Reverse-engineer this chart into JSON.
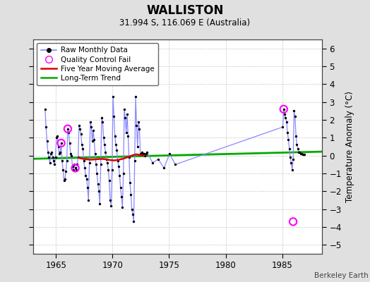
{
  "title": "WALLISTON",
  "subtitle": "31.994 S, 116.069 E (Australia)",
  "ylabel": "Temperature Anomaly (°C)",
  "credit": "Berkeley Earth",
  "xlim": [
    1963.0,
    1988.5
  ],
  "ylim": [
    -5.5,
    6.5
  ],
  "yticks": [
    -5,
    -4,
    -3,
    -2,
    -1,
    0,
    1,
    2,
    3,
    4,
    5,
    6
  ],
  "xticks": [
    1965,
    1970,
    1975,
    1980,
    1985
  ],
  "bg_color": "#e0e0e0",
  "plot_bg": "#ffffff",
  "raw_line_color": "#8888ff",
  "raw_dot_color": "#000000",
  "ma_color": "#dd0000",
  "trend_color": "#00aa00",
  "qc_color": "#ff00ff",
  "raw_data": [
    [
      1964.042,
      2.6
    ],
    [
      1964.125,
      1.6
    ],
    [
      1964.208,
      0.8
    ],
    [
      1964.292,
      0.2
    ],
    [
      1964.375,
      -0.1
    ],
    [
      1964.458,
      -0.4
    ],
    [
      1964.542,
      0.1
    ],
    [
      1964.625,
      0.2
    ],
    [
      1964.708,
      -0.1
    ],
    [
      1964.792,
      -0.3
    ],
    [
      1964.875,
      -0.5
    ],
    [
      1964.958,
      -0.1
    ],
    [
      1965.042,
      1.0
    ],
    [
      1965.125,
      1.1
    ],
    [
      1965.208,
      0.5
    ],
    [
      1965.292,
      0.1
    ],
    [
      1965.375,
      0.2
    ],
    [
      1965.458,
      0.7
    ],
    [
      1965.542,
      -0.3
    ],
    [
      1965.625,
      -0.8
    ],
    [
      1965.708,
      -1.4
    ],
    [
      1965.792,
      -1.3
    ],
    [
      1965.875,
      -0.9
    ],
    [
      1965.958,
      -0.3
    ],
    [
      1966.042,
      1.5
    ],
    [
      1966.125,
      1.3
    ],
    [
      1966.208,
      0.7
    ],
    [
      1966.292,
      0.1
    ],
    [
      1966.375,
      0.0
    ],
    [
      1966.458,
      -0.6
    ],
    [
      1966.542,
      -0.8
    ],
    [
      1966.625,
      -0.5
    ],
    [
      1966.708,
      -0.7
    ],
    [
      1966.792,
      -0.8
    ],
    [
      1966.875,
      -0.5
    ],
    [
      1966.958,
      -0.1
    ],
    [
      1967.042,
      1.7
    ],
    [
      1967.125,
      1.5
    ],
    [
      1967.208,
      1.2
    ],
    [
      1967.292,
      0.6
    ],
    [
      1967.375,
      0.4
    ],
    [
      1967.458,
      -0.3
    ],
    [
      1967.542,
      -0.7
    ],
    [
      1967.625,
      -1.1
    ],
    [
      1967.708,
      -1.3
    ],
    [
      1967.792,
      -1.8
    ],
    [
      1967.875,
      -2.5
    ],
    [
      1967.958,
      -0.4
    ],
    [
      1968.042,
      1.9
    ],
    [
      1968.125,
      1.6
    ],
    [
      1968.208,
      0.8
    ],
    [
      1968.292,
      1.4
    ],
    [
      1968.375,
      0.9
    ],
    [
      1968.458,
      0.1
    ],
    [
      1968.542,
      -0.5
    ],
    [
      1968.625,
      -1.0
    ],
    [
      1968.708,
      -1.6
    ],
    [
      1968.792,
      -2.0
    ],
    [
      1968.875,
      -2.7
    ],
    [
      1968.958,
      -0.5
    ],
    [
      1969.042,
      2.1
    ],
    [
      1969.125,
      1.9
    ],
    [
      1969.208,
      1.0
    ],
    [
      1969.292,
      0.6
    ],
    [
      1969.375,
      0.2
    ],
    [
      1969.458,
      -0.2
    ],
    [
      1969.542,
      -0.4
    ],
    [
      1969.625,
      -0.8
    ],
    [
      1969.708,
      -1.4
    ],
    [
      1969.792,
      -2.5
    ],
    [
      1969.875,
      -2.8
    ],
    [
      1969.958,
      -0.8
    ],
    [
      1970.042,
      3.3
    ],
    [
      1970.125,
      2.2
    ],
    [
      1970.208,
      1.1
    ],
    [
      1970.292,
      0.6
    ],
    [
      1970.375,
      0.3
    ],
    [
      1970.458,
      -0.3
    ],
    [
      1970.542,
      -0.6
    ],
    [
      1970.625,
      -1.1
    ],
    [
      1970.708,
      -1.8
    ],
    [
      1970.792,
      -2.3
    ],
    [
      1970.875,
      -2.9
    ],
    [
      1970.958,
      -1.0
    ],
    [
      1971.042,
      2.6
    ],
    [
      1971.125,
      2.1
    ],
    [
      1971.208,
      1.3
    ],
    [
      1971.292,
      2.3
    ],
    [
      1971.375,
      1.1
    ],
    [
      1971.458,
      -0.1
    ],
    [
      1971.542,
      -1.5
    ],
    [
      1971.625,
      -2.2
    ],
    [
      1971.708,
      -3.0
    ],
    [
      1971.792,
      -3.3
    ],
    [
      1971.875,
      -3.7
    ],
    [
      1971.958,
      -0.3
    ],
    [
      1972.042,
      3.3
    ],
    [
      1972.125,
      1.7
    ],
    [
      1972.208,
      0.5
    ],
    [
      1972.292,
      1.9
    ],
    [
      1972.375,
      1.5
    ],
    [
      1972.458,
      0.1
    ],
    [
      1972.542,
      0.1
    ],
    [
      1972.625,
      0.2
    ],
    [
      1972.708,
      0.1
    ],
    [
      1972.792,
      0.1
    ],
    [
      1972.875,
      0.0
    ],
    [
      1972.958,
      0.1
    ],
    [
      1973.042,
      0.2
    ],
    [
      1973.542,
      -0.4
    ],
    [
      1974.042,
      -0.2
    ],
    [
      1974.542,
      -0.7
    ],
    [
      1975.042,
      0.1
    ],
    [
      1975.542,
      -0.5
    ],
    [
      1985.042,
      1.6
    ],
    [
      1985.125,
      2.6
    ],
    [
      1985.208,
      2.3
    ],
    [
      1985.292,
      2.1
    ],
    [
      1985.375,
      1.9
    ],
    [
      1985.458,
      1.3
    ],
    [
      1985.542,
      0.9
    ],
    [
      1985.625,
      0.4
    ],
    [
      1985.708,
      -0.1
    ],
    [
      1985.792,
      -0.4
    ],
    [
      1985.875,
      -0.8
    ],
    [
      1985.958,
      -0.2
    ],
    [
      1986.042,
      2.5
    ],
    [
      1986.125,
      2.2
    ],
    [
      1986.208,
      1.1
    ],
    [
      1986.292,
      0.6
    ],
    [
      1986.375,
      0.4
    ],
    [
      1986.458,
      0.2
    ],
    [
      1986.542,
      0.2
    ],
    [
      1986.625,
      0.1
    ],
    [
      1986.708,
      0.1
    ],
    [
      1986.792,
      0.05
    ],
    [
      1986.875,
      0.05
    ],
    [
      1986.958,
      0.05
    ]
  ],
  "qc_points": [
    [
      1965.458,
      0.7
    ],
    [
      1966.042,
      1.5
    ],
    [
      1966.708,
      -0.7
    ],
    [
      1985.125,
      2.6
    ],
    [
      1985.958,
      -3.7
    ]
  ],
  "ma_data": [
    [
      1967.0,
      -0.12
    ],
    [
      1967.1,
      -0.14
    ],
    [
      1967.3,
      -0.17
    ],
    [
      1967.5,
      -0.19
    ],
    [
      1967.7,
      -0.21
    ],
    [
      1967.9,
      -0.22
    ],
    [
      1968.1,
      -0.23
    ],
    [
      1968.3,
      -0.22
    ],
    [
      1968.5,
      -0.21
    ],
    [
      1968.7,
      -0.2
    ],
    [
      1968.9,
      -0.19
    ],
    [
      1969.1,
      -0.19
    ],
    [
      1969.3,
      -0.2
    ],
    [
      1969.5,
      -0.22
    ],
    [
      1969.7,
      -0.24
    ],
    [
      1969.9,
      -0.26
    ],
    [
      1970.1,
      -0.27
    ],
    [
      1970.3,
      -0.26
    ],
    [
      1970.5,
      -0.24
    ],
    [
      1970.7,
      -0.21
    ],
    [
      1970.9,
      -0.18
    ],
    [
      1971.1,
      -0.14
    ],
    [
      1971.3,
      -0.1
    ],
    [
      1971.5,
      -0.05
    ],
    [
      1971.7,
      0.0
    ],
    [
      1971.9,
      0.04
    ],
    [
      1972.1,
      0.07
    ],
    [
      1972.3,
      0.05
    ],
    [
      1972.5,
      0.02
    ],
    [
      1972.6,
      0.0
    ],
    [
      1972.7,
      -0.01
    ],
    [
      1972.8,
      0.0
    ]
  ],
  "trend_x": [
    1963.0,
    1988.5
  ],
  "trend_y": [
    -0.18,
    0.22
  ]
}
